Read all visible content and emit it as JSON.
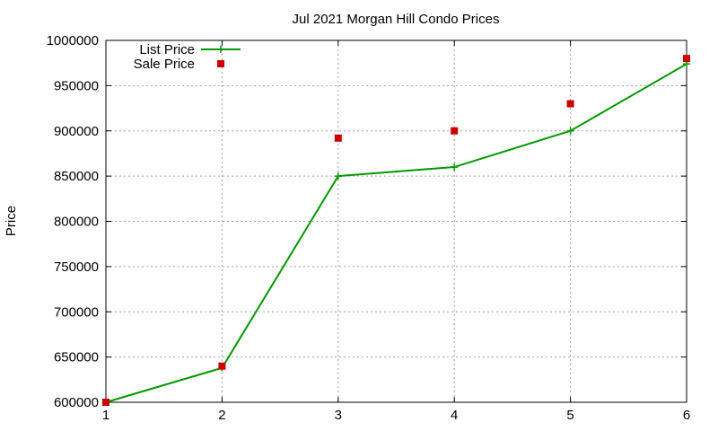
{
  "chart_data": {
    "type": "line",
    "title": "Jul 2021 Morgan Hill Condo Prices",
    "xlabel": "",
    "ylabel": "Price",
    "xlim": [
      1,
      6
    ],
    "ylim": [
      600000,
      1000000
    ],
    "xticks": [
      "1",
      "2",
      "3",
      "4",
      "5",
      "6"
    ],
    "yticks": [
      "600000",
      "650000",
      "700000",
      "750000",
      "800000",
      "850000",
      "900000",
      "950000",
      "1000000"
    ],
    "grid": true,
    "legend_position": "top-left",
    "series": [
      {
        "name": "List Price",
        "style": "line-points",
        "color": "#009900",
        "x": [
          1,
          2,
          3,
          4,
          5,
          6
        ],
        "y": [
          600000,
          638000,
          850000,
          860000,
          900000,
          974000
        ]
      },
      {
        "name": "Sale Price",
        "style": "points",
        "color": "#cc0000",
        "x": [
          1,
          2,
          3,
          4,
          5,
          6
        ],
        "y": [
          600000,
          640000,
          892000,
          900000,
          930000,
          980000
        ]
      }
    ]
  }
}
